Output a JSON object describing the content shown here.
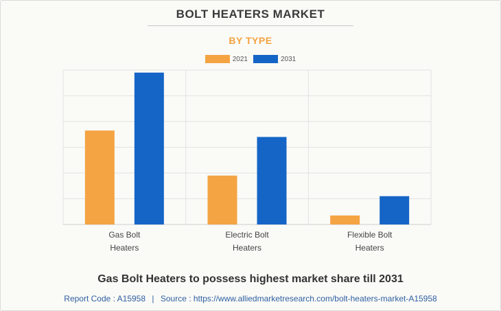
{
  "title": "BOLT HEATERS MARKET",
  "subtitle": "BY TYPE",
  "headline": "Gas Bolt Heaters to possess highest market share till 2031",
  "footer": {
    "report_code": "Report Code : A15958",
    "separator": "|",
    "source": "Source : https://www.alliedmarketresearch.com/bolt-heaters-market-A15958"
  },
  "chart_data": {
    "type": "bar",
    "categories": [
      "Gas Bolt Heaters",
      "Electric Bolt Heaters",
      "Flexible Bolt Heaters"
    ],
    "category_lines": [
      [
        "Gas Bolt",
        "Heaters"
      ],
      [
        "Electric Bolt",
        "Heaters"
      ],
      [
        "Flexible Bolt",
        "Heaters"
      ]
    ],
    "series": [
      {
        "name": "2021",
        "color": "#f4a443",
        "values": [
          3.65,
          1.9,
          0.35
        ]
      },
      {
        "name": "2031",
        "color": "#1565c7",
        "values": [
          5.9,
          3.4,
          1.1
        ]
      }
    ],
    "ylim": [
      0,
      6
    ],
    "gridlines": [
      0,
      1,
      2,
      3,
      4,
      5,
      6
    ],
    "grid": true,
    "legend_position": "top-center",
    "axis_tick_labels_shown": false
  }
}
